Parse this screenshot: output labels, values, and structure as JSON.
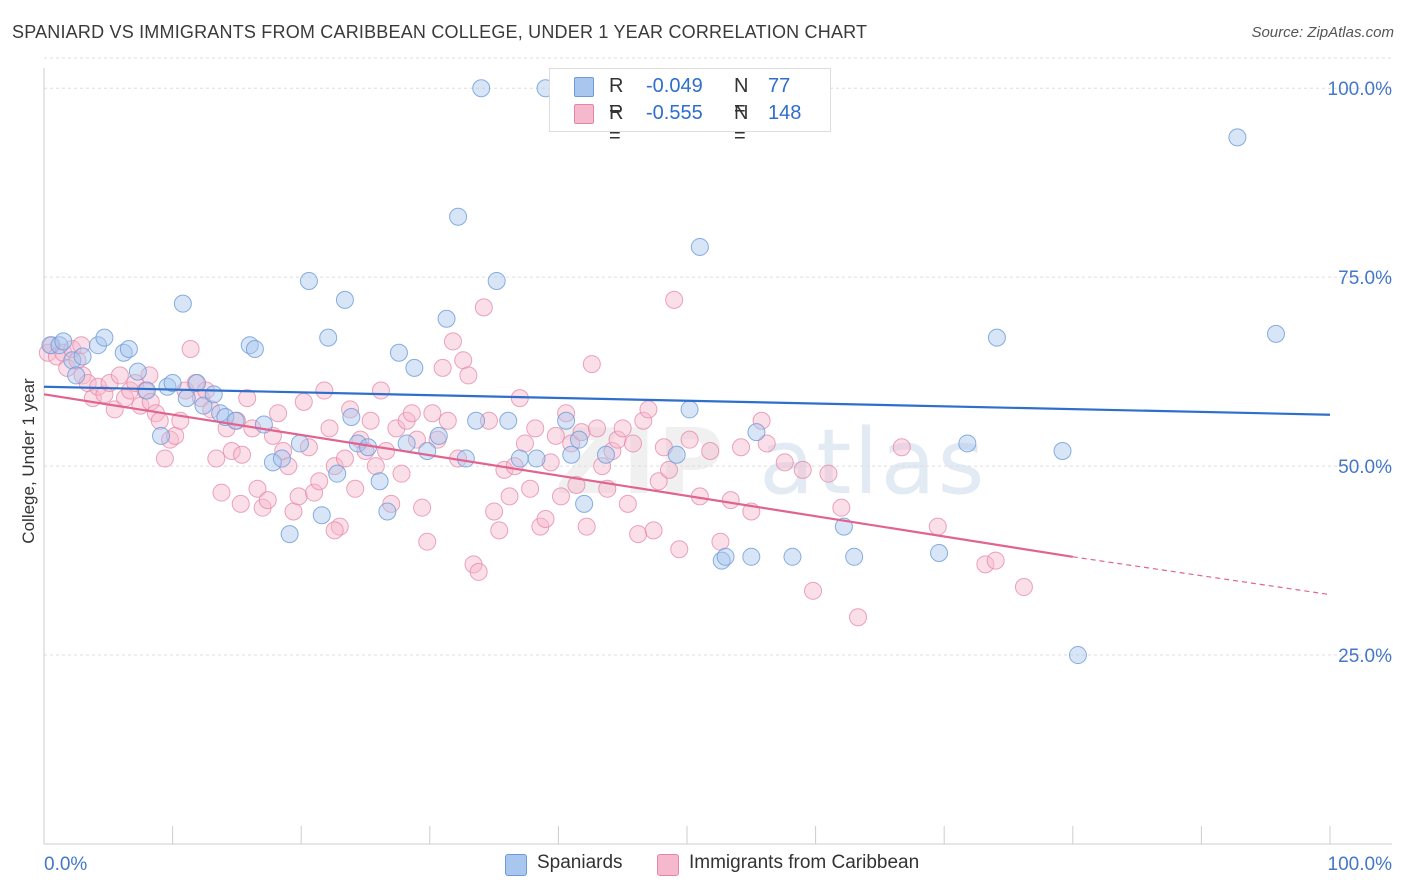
{
  "title": "SPANIARD VS IMMIGRANTS FROM CARIBBEAN COLLEGE, UNDER 1 YEAR CORRELATION CHART",
  "source": "Source: ZipAtlas.com",
  "watermark": {
    "zip": "ZIP",
    "atlas": "atlas"
  },
  "legend": {
    "series1": {
      "r_label": "R =",
      "r_value": "-0.049",
      "n_label": "N =",
      "n_value": "77"
    },
    "series2": {
      "r_label": "R =",
      "r_value": "-0.555",
      "n_label": "N =",
      "n_value": "148"
    }
  },
  "colors": {
    "blue_fill": "#a9c6ee",
    "blue_stroke": "#6c9bd8",
    "blue_line": "#2e6fcc",
    "pink_fill": "#f6b8cc",
    "pink_stroke": "#e585a6",
    "pink_line": "#e0648f",
    "tick_label": "#4577c8",
    "grid": "#dddddd"
  },
  "chart_data": {
    "type": "scatter",
    "title": "SPANIARD VS IMMIGRANTS FROM CARIBBEAN COLLEGE, UNDER 1 YEAR CORRELATION CHART",
    "xlabel": "",
    "ylabel": "College, Under 1 year",
    "xlim": [
      0,
      100
    ],
    "ylim": [
      0,
      104
    ],
    "x_tick_labels": [
      "0.0%",
      "100.0%"
    ],
    "y_tick_labels": [
      "25.0%",
      "50.0%",
      "75.0%",
      "100.0%"
    ],
    "y_ticks": [
      25,
      50,
      75,
      100
    ],
    "grid": true,
    "series": [
      {
        "name": "Spaniards",
        "trend": {
          "x": [
            0,
            100
          ],
          "y": [
            60.5,
            56.8
          ]
        },
        "points": [
          [
            0.5,
            66
          ],
          [
            1.2,
            66
          ],
          [
            1.5,
            66.5
          ],
          [
            2.2,
            64
          ],
          [
            2.5,
            62
          ],
          [
            3.0,
            64.5
          ],
          [
            4.2,
            66
          ],
          [
            4.7,
            67
          ],
          [
            6.2,
            65
          ],
          [
            6.6,
            65.5
          ],
          [
            7.3,
            62.5
          ],
          [
            8.0,
            60
          ],
          [
            9.1,
            54
          ],
          [
            9.6,
            60.5
          ],
          [
            10.0,
            61
          ],
          [
            10.8,
            71.5
          ],
          [
            11.1,
            59
          ],
          [
            11.9,
            61
          ],
          [
            12.4,
            58
          ],
          [
            13.2,
            59.5
          ],
          [
            13.7,
            57
          ],
          [
            14.1,
            56.5
          ],
          [
            14.9,
            56
          ],
          [
            16.0,
            66
          ],
          [
            16.4,
            65.5
          ],
          [
            17.1,
            55.5
          ],
          [
            17.8,
            50.5
          ],
          [
            18.5,
            51
          ],
          [
            19.1,
            41
          ],
          [
            19.9,
            53
          ],
          [
            20.6,
            74.5
          ],
          [
            21.6,
            43.5
          ],
          [
            22.1,
            67
          ],
          [
            22.8,
            49
          ],
          [
            23.4,
            72
          ],
          [
            23.9,
            56.5
          ],
          [
            24.4,
            53
          ],
          [
            25.2,
            52.5
          ],
          [
            26.1,
            48
          ],
          [
            26.7,
            44
          ],
          [
            27.6,
            65
          ],
          [
            28.2,
            53
          ],
          [
            28.8,
            63
          ],
          [
            29.8,
            52
          ],
          [
            30.7,
            54
          ],
          [
            31.3,
            69.5
          ],
          [
            32.2,
            83
          ],
          [
            32.8,
            51
          ],
          [
            33.6,
            56
          ],
          [
            34.0,
            100
          ],
          [
            35.2,
            74.5
          ],
          [
            36.1,
            56
          ],
          [
            37.0,
            51
          ],
          [
            38.3,
            51
          ],
          [
            39.0,
            100
          ],
          [
            40.6,
            56
          ],
          [
            41.0,
            51.5
          ],
          [
            41.6,
            53.5
          ],
          [
            42.0,
            45
          ],
          [
            43.7,
            51.5
          ],
          [
            49.2,
            51.5
          ],
          [
            50.2,
            57.5
          ],
          [
            51.0,
            79
          ],
          [
            52.7,
            37.5
          ],
          [
            53.0,
            38
          ],
          [
            55.0,
            38
          ],
          [
            55.4,
            54.5
          ],
          [
            58.2,
            38
          ],
          [
            62.2,
            42
          ],
          [
            63.0,
            38
          ],
          [
            69.6,
            38.5
          ],
          [
            71.8,
            53
          ],
          [
            74.1,
            67
          ],
          [
            79.2,
            52
          ],
          [
            80.4,
            25
          ],
          [
            92.8,
            93.5
          ],
          [
            95.8,
            67.5
          ]
        ]
      },
      {
        "name": "Immigrants from Caribbean",
        "trend": {
          "x": [
            0,
            80,
            100
          ],
          "y": [
            59.5,
            38,
            33
          ]
        },
        "points": [
          [
            0.3,
            65
          ],
          [
            0.6,
            66
          ],
          [
            1.0,
            64.5
          ],
          [
            1.5,
            65
          ],
          [
            1.8,
            63
          ],
          [
            2.2,
            65.5
          ],
          [
            2.6,
            64
          ],
          [
            3.0,
            62
          ],
          [
            3.4,
            61
          ],
          [
            3.8,
            59
          ],
          [
            4.2,
            60.5
          ],
          [
            4.7,
            59.5
          ],
          [
            5.1,
            61
          ],
          [
            5.5,
            57.5
          ],
          [
            5.9,
            62
          ],
          [
            6.3,
            59
          ],
          [
            6.7,
            60
          ],
          [
            7.1,
            61
          ],
          [
            7.5,
            58
          ],
          [
            7.9,
            60
          ],
          [
            8.3,
            58.5
          ],
          [
            8.7,
            57
          ],
          [
            9.0,
            56
          ],
          [
            9.4,
            51
          ],
          [
            9.8,
            53.5
          ],
          [
            10.2,
            54
          ],
          [
            10.6,
            56
          ],
          [
            11.0,
            60
          ],
          [
            11.4,
            65.5
          ],
          [
            11.8,
            61
          ],
          [
            12.2,
            59
          ],
          [
            12.6,
            60
          ],
          [
            13.0,
            57.5
          ],
          [
            13.4,
            51
          ],
          [
            13.8,
            46.5
          ],
          [
            14.2,
            55
          ],
          [
            14.6,
            52
          ],
          [
            15.0,
            56
          ],
          [
            15.4,
            51.5
          ],
          [
            15.8,
            59
          ],
          [
            16.2,
            55
          ],
          [
            16.6,
            47
          ],
          [
            17.0,
            44.5
          ],
          [
            17.4,
            45.5
          ],
          [
            17.8,
            54
          ],
          [
            18.2,
            57
          ],
          [
            18.6,
            52
          ],
          [
            19.0,
            50
          ],
          [
            19.4,
            44
          ],
          [
            19.8,
            46
          ],
          [
            20.2,
            58.5
          ],
          [
            20.6,
            52.5
          ],
          [
            21.0,
            46.5
          ],
          [
            21.4,
            48
          ],
          [
            21.8,
            60
          ],
          [
            22.2,
            55
          ],
          [
            22.6,
            50
          ],
          [
            23.0,
            42
          ],
          [
            23.4,
            51
          ],
          [
            23.8,
            57.5
          ],
          [
            24.2,
            47
          ],
          [
            24.6,
            53.5
          ],
          [
            25.0,
            52
          ],
          [
            25.4,
            56
          ],
          [
            25.8,
            50
          ],
          [
            26.2,
            60
          ],
          [
            26.6,
            52
          ],
          [
            27.0,
            45
          ],
          [
            27.4,
            55
          ],
          [
            27.8,
            49
          ],
          [
            28.2,
            56
          ],
          [
            28.6,
            57
          ],
          [
            29.0,
            53.5
          ],
          [
            29.4,
            44.5
          ],
          [
            29.8,
            40
          ],
          [
            30.2,
            57
          ],
          [
            30.6,
            53.5
          ],
          [
            31.0,
            63
          ],
          [
            31.4,
            56
          ],
          [
            31.8,
            66.5
          ],
          [
            32.2,
            51
          ],
          [
            32.6,
            64
          ],
          [
            33.0,
            62
          ],
          [
            33.4,
            37
          ],
          [
            33.8,
            36
          ],
          [
            34.2,
            71
          ],
          [
            34.6,
            56
          ],
          [
            35.0,
            44
          ],
          [
            35.4,
            41.5
          ],
          [
            35.8,
            49.5
          ],
          [
            36.2,
            46
          ],
          [
            36.6,
            50
          ],
          [
            37.0,
            59
          ],
          [
            37.4,
            53
          ],
          [
            37.8,
            47
          ],
          [
            38.2,
            55
          ],
          [
            38.6,
            42
          ],
          [
            39.0,
            43
          ],
          [
            39.4,
            50.5
          ],
          [
            39.8,
            54
          ],
          [
            40.2,
            46
          ],
          [
            40.6,
            57
          ],
          [
            41.0,
            53
          ],
          [
            41.4,
            47.5
          ],
          [
            41.8,
            54.5
          ],
          [
            42.2,
            42
          ],
          [
            42.6,
            63.5
          ],
          [
            43.0,
            55
          ],
          [
            43.4,
            50
          ],
          [
            43.8,
            47
          ],
          [
            44.2,
            52
          ],
          [
            44.6,
            53.5
          ],
          [
            45.0,
            55
          ],
          [
            45.4,
            45
          ],
          [
            45.8,
            53
          ],
          [
            46.2,
            41
          ],
          [
            46.6,
            56
          ],
          [
            47.0,
            57.5
          ],
          [
            47.4,
            41.5
          ],
          [
            47.8,
            48
          ],
          [
            48.2,
            52.5
          ],
          [
            48.6,
            49.5
          ],
          [
            49.0,
            72
          ],
          [
            49.4,
            39
          ],
          [
            50.2,
            53.5
          ],
          [
            51.0,
            46
          ],
          [
            51.8,
            52
          ],
          [
            52.6,
            40
          ],
          [
            53.4,
            45.5
          ],
          [
            54.2,
            52.5
          ],
          [
            55.0,
            44
          ],
          [
            55.8,
            56
          ],
          [
            56.2,
            53
          ],
          [
            57.6,
            50.5
          ],
          [
            59.0,
            49.5
          ],
          [
            59.8,
            33.5
          ],
          [
            61.0,
            49
          ],
          [
            62.0,
            44.5
          ],
          [
            63.3,
            30
          ],
          [
            66.7,
            52.5
          ],
          [
            69.5,
            42
          ],
          [
            73.2,
            37
          ],
          [
            74.0,
            37.5
          ],
          [
            76.2,
            34
          ],
          [
            22.6,
            41.5
          ],
          [
            15.3,
            45
          ],
          [
            8.2,
            62
          ],
          [
            2.9,
            66
          ]
        ]
      }
    ]
  },
  "bottom_legend": {
    "series1": "Spaniards",
    "series2": "Immigrants from Caribbean"
  }
}
